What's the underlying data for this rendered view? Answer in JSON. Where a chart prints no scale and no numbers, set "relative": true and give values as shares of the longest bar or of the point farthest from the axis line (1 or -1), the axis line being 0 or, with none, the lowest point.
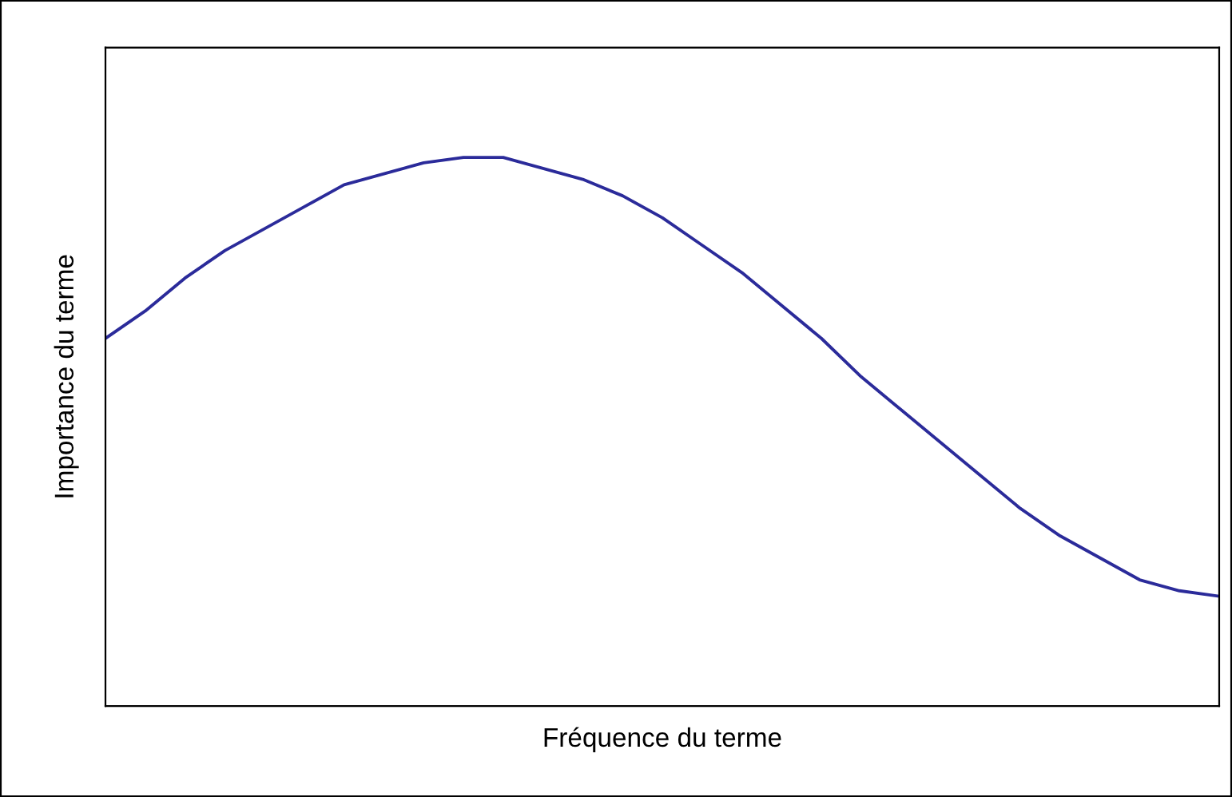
{
  "chart_data": {
    "type": "line",
    "relative": true,
    "xlabel": "Fréquence du terme",
    "ylabel": "Importance du terme",
    "categories": [
      null,
      null,
      null,
      null,
      null,
      null,
      null,
      null,
      null,
      null,
      null,
      null,
      null,
      null,
      null,
      null,
      null,
      null,
      null,
      null,
      null,
      null,
      null,
      null,
      null,
      null,
      null,
      null,
      null
    ],
    "series": [
      {
        "color": "#2b2b9a",
        "values": [
          0.67,
          0.72,
          0.78,
          0.83,
          0.87,
          0.91,
          0.95,
          0.97,
          0.99,
          1.0,
          1.0,
          0.98,
          0.96,
          0.93,
          0.89,
          0.84,
          0.79,
          0.73,
          0.67,
          0.6,
          0.54,
          0.48,
          0.42,
          0.36,
          0.31,
          0.27,
          0.23,
          0.21,
          0.2
        ]
      }
    ],
    "grid": false,
    "legend": false,
    "marker": "none",
    "line_style": "solid"
  }
}
